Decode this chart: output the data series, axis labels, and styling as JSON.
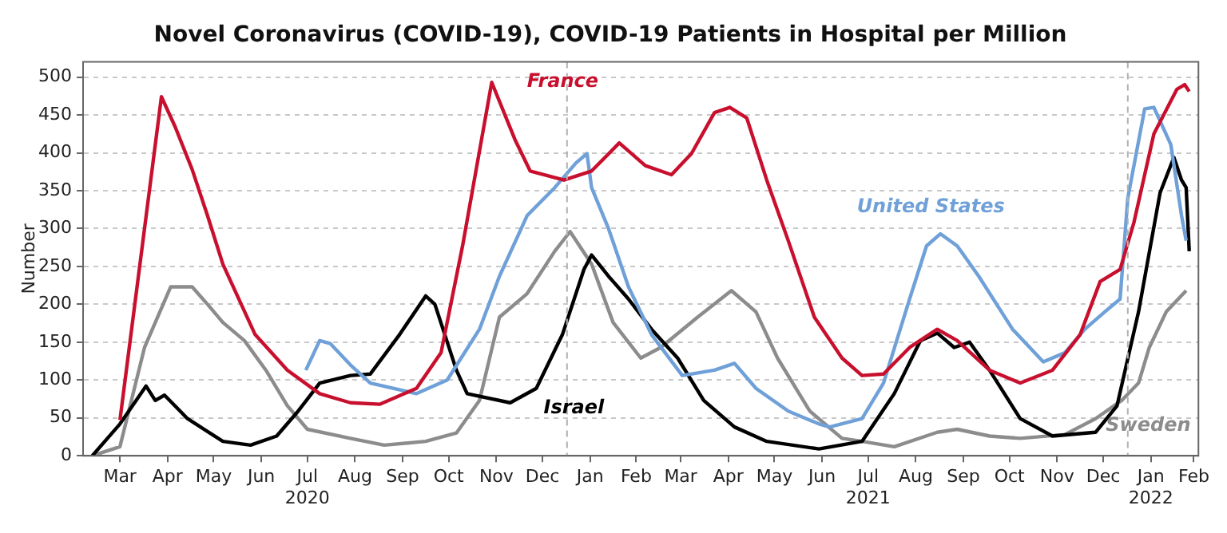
{
  "chart_data": {
    "type": "line",
    "title": "Novel Coronavirus (COVID-19), COVID-19 Patients in Hospital per Million",
    "ylabel": "Number",
    "xlim": [
      "2020-02-21",
      "2022-02-16"
    ],
    "xticks": [
      {
        "value": "2020-03-16",
        "label": "Mar"
      },
      {
        "value": "2020-04-16",
        "label": "Apr"
      },
      {
        "value": "2020-05-16",
        "label": "May"
      },
      {
        "value": "2020-06-16",
        "label": "Jun"
      },
      {
        "value": "2020-07-16",
        "label": "Jul\n2020"
      },
      {
        "value": "2020-08-16",
        "label": "Aug"
      },
      {
        "value": "2020-09-16",
        "label": "Sep"
      },
      {
        "value": "2020-10-16",
        "label": "Oct"
      },
      {
        "value": "2020-11-16",
        "label": "Nov"
      },
      {
        "value": "2020-12-16",
        "label": "Dec"
      },
      {
        "value": "2021-01-16",
        "label": "Jan"
      },
      {
        "value": "2021-02-15",
        "label": "Feb"
      },
      {
        "value": "2021-03-16",
        "label": "Mar"
      },
      {
        "value": "2021-04-16",
        "label": "Apr"
      },
      {
        "value": "2021-05-16",
        "label": "May"
      },
      {
        "value": "2021-06-16",
        "label": "Jun"
      },
      {
        "value": "2021-07-16",
        "label": "Jul\n2021"
      },
      {
        "value": "2021-08-16",
        "label": "Aug"
      },
      {
        "value": "2021-09-16",
        "label": "Sep"
      },
      {
        "value": "2021-10-16",
        "label": "Oct"
      },
      {
        "value": "2021-11-16",
        "label": "Nov"
      },
      {
        "value": "2021-12-16",
        "label": "Dec"
      },
      {
        "value": "2022-01-16",
        "label": "Jan\n2022"
      },
      {
        "value": "2022-02-13",
        "label": "Feb"
      }
    ],
    "ylim": [
      0,
      520
    ],
    "yticks": [
      0,
      50,
      100,
      150,
      200,
      250,
      300,
      350,
      400,
      450,
      500
    ],
    "grid": "y",
    "legend": false,
    "marker": "none",
    "line_style": "solid",
    "ref_lines": [
      {
        "axis": "x",
        "value": "2021-01-01",
        "color": "#b0b0b0",
        "line_style": "dashed"
      },
      {
        "axis": "x",
        "value": "2022-01-01",
        "color": "#b0b0b0",
        "line_style": "dashed"
      }
    ],
    "series": [
      {
        "name": "France",
        "color": "#c8102e",
        "x": [
          "2020-03-16",
          "2020-04-12",
          "2020-04-21",
          "2020-05-02",
          "2020-05-12",
          "2020-05-22",
          "2020-06-12",
          "2020-07-03",
          "2020-07-24",
          "2020-08-13",
          "2020-09-01",
          "2020-09-25",
          "2020-10-11",
          "2020-10-25",
          "2020-11-13",
          "2020-11-28",
          "2020-12-08",
          "2020-12-30",
          "2021-01-17",
          "2021-02-04",
          "2021-02-21",
          "2021-03-10",
          "2021-03-23",
          "2021-04-07",
          "2021-04-17",
          "2021-04-28",
          "2021-05-11",
          "2021-05-25",
          "2021-06-11",
          "2021-06-29",
          "2021-07-12",
          "2021-07-26",
          "2021-08-12",
          "2021-08-30",
          "2021-09-12",
          "2021-10-03",
          "2021-10-23",
          "2021-11-13",
          "2021-12-01",
          "2021-12-14",
          "2021-12-27",
          "2022-01-05",
          "2022-01-18",
          "2022-02-02",
          "2022-02-07",
          "2022-02-10"
        ],
        "values": [
          47,
          474,
          434,
          378,
          317,
          253,
          160,
          113,
          82,
          70,
          68,
          89,
          136,
          277,
          493,
          418,
          376,
          364,
          376,
          413,
          383,
          371,
          399,
          453,
          460,
          446,
          364,
          284,
          183,
          129,
          106,
          108,
          143,
          167,
          152,
          113,
          96,
          113,
          160,
          230,
          246,
          308,
          425,
          484,
          490,
          481
        ]
      },
      {
        "name": "United States",
        "color": "#6fa0d8",
        "x": [
          "2020-07-15",
          "2020-07-24",
          "2020-07-31",
          "2020-08-13",
          "2020-08-26",
          "2020-09-25",
          "2020-10-15",
          "2020-11-05",
          "2020-11-18",
          "2020-12-06",
          "2020-12-24",
          "2021-01-07",
          "2021-01-14",
          "2021-01-17",
          "2021-01-28",
          "2021-02-10",
          "2021-02-25",
          "2021-03-17",
          "2021-04-07",
          "2021-04-20",
          "2021-05-04",
          "2021-05-25",
          "2021-06-14",
          "2021-06-21",
          "2021-07-12",
          "2021-07-26",
          "2021-08-12",
          "2021-08-23",
          "2021-09-01",
          "2021-09-12",
          "2021-09-26",
          "2021-10-18",
          "2021-11-07",
          "2021-11-21",
          "2021-12-04",
          "2021-12-17",
          "2021-12-27",
          "2022-01-01",
          "2022-01-12",
          "2022-01-18",
          "2022-01-29",
          "2022-02-05",
          "2022-02-08"
        ],
        "values": [
          113,
          152,
          148,
          120,
          96,
          82,
          100,
          167,
          237,
          317,
          354,
          387,
          399,
          354,
          300,
          223,
          160,
          106,
          113,
          122,
          89,
          59,
          42,
          38,
          49,
          96,
          207,
          277,
          293,
          277,
          237,
          167,
          124,
          136,
          167,
          190,
          207,
          340,
          458,
          460,
          411,
          317,
          284
        ]
      },
      {
        "name": "Israel",
        "color": "#000000",
        "x": [
          "2020-02-27",
          "2020-03-16",
          "2020-04-02",
          "2020-04-08",
          "2020-04-14",
          "2020-04-29",
          "2020-05-22",
          "2020-06-09",
          "2020-06-26",
          "2020-07-10",
          "2020-07-24",
          "2020-08-13",
          "2020-08-26",
          "2020-09-14",
          "2020-10-01",
          "2020-10-07",
          "2020-10-21",
          "2020-10-28",
          "2020-11-25",
          "2020-12-12",
          "2020-12-29",
          "2021-01-12",
          "2021-01-17",
          "2021-01-28",
          "2021-02-10",
          "2021-02-25",
          "2021-03-14",
          "2021-03-31",
          "2021-04-20",
          "2021-05-11",
          "2021-06-14",
          "2021-07-12",
          "2021-08-02",
          "2021-08-19",
          "2021-08-30",
          "2021-09-10",
          "2021-09-20",
          "2021-10-03",
          "2021-10-23",
          "2021-11-13",
          "2021-12-11",
          "2021-12-25",
          "2022-01-08",
          "2022-01-22",
          "2022-01-31",
          "2022-02-05",
          "2022-02-08",
          "2022-02-10"
        ],
        "values": [
          0,
          42,
          92,
          73,
          80,
          49,
          19,
          14,
          26,
          59,
          96,
          106,
          108,
          160,
          211,
          200,
          113,
          82,
          70,
          89,
          160,
          246,
          265,
          237,
          207,
          167,
          129,
          73,
          38,
          19,
          9,
          19,
          82,
          152,
          162,
          143,
          150,
          113,
          49,
          26,
          31,
          66,
          190,
          347,
          394,
          364,
          354,
          270
        ]
      },
      {
        "name": "Sweden",
        "color": "#8c8c8c",
        "x": [
          "2020-02-27",
          "2020-03-16",
          "2020-04-01",
          "2020-04-18",
          "2020-05-02",
          "2020-05-12",
          "2020-05-22",
          "2020-06-05",
          "2020-06-19",
          "2020-07-03",
          "2020-07-16",
          "2020-08-13",
          "2020-09-04",
          "2020-10-01",
          "2020-10-21",
          "2020-11-05",
          "2020-11-18",
          "2020-12-06",
          "2020-12-24",
          "2021-01-03",
          "2021-01-17",
          "2021-01-31",
          "2021-02-18",
          "2021-03-03",
          "2021-03-27",
          "2021-04-18",
          "2021-05-04",
          "2021-05-18",
          "2021-06-08",
          "2021-06-29",
          "2021-07-12",
          "2021-08-02",
          "2021-08-30",
          "2021-09-12",
          "2021-10-03",
          "2021-10-23",
          "2021-11-21",
          "2021-12-11",
          "2021-12-28",
          "2022-01-08",
          "2022-01-15",
          "2022-01-26",
          "2022-02-08"
        ],
        "values": [
          0,
          12,
          143,
          223,
          223,
          200,
          176,
          152,
          113,
          66,
          35,
          23,
          14,
          19,
          30,
          73,
          183,
          214,
          270,
          296,
          253,
          176,
          129,
          143,
          183,
          218,
          190,
          129,
          59,
          23,
          19,
          12,
          31,
          35,
          26,
          23,
          28,
          49,
          73,
          96,
          143,
          190,
          218
        ]
      }
    ]
  }
}
